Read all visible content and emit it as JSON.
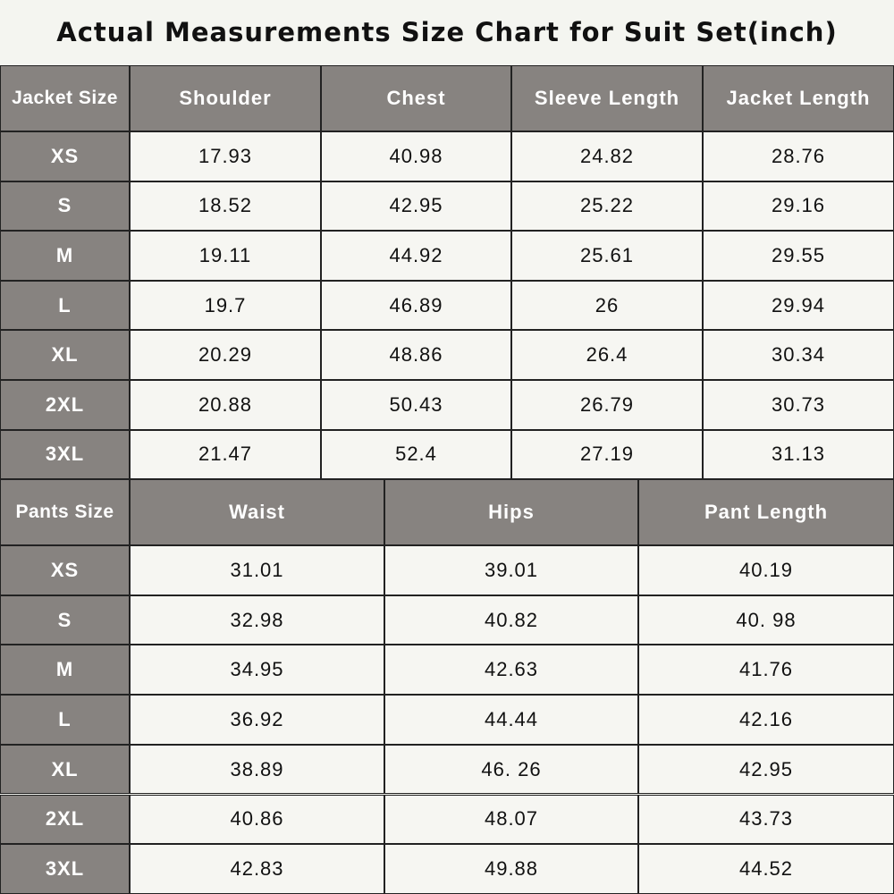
{
  "title": "Actual Measurements Size Chart for Suit Set(inch)",
  "jacket": {
    "header": [
      "Jacket Size",
      "Shoulder",
      "Chest",
      "Sleeve Length",
      "Jacket Length"
    ],
    "rows": [
      [
        "XS",
        "17.93",
        "40.98",
        "24.82",
        "28.76"
      ],
      [
        "S",
        "18.52",
        "42.95",
        "25.22",
        "29.16"
      ],
      [
        "M",
        "19.11",
        "44.92",
        "25.61",
        "29.55"
      ],
      [
        "L",
        "19.7",
        "46.89",
        "26",
        "29.94"
      ],
      [
        "XL",
        "20.29",
        "48.86",
        "26.4",
        "30.34"
      ],
      [
        "2XL",
        "20.88",
        "50.43",
        "26.79",
        "30.73"
      ],
      [
        "3XL",
        "21.47",
        "52.4",
        "27.19",
        "31.13"
      ]
    ]
  },
  "pants": {
    "header": [
      "Pants Size",
      "Waist",
      "Hips",
      "Pant Length"
    ],
    "rows": [
      [
        "XS",
        "31.01",
        "39.01",
        "40.19"
      ],
      [
        "S",
        "32.98",
        "40.82",
        "40. 98"
      ],
      [
        "M",
        "34.95",
        "42.63",
        "41.76"
      ],
      [
        "L",
        "36.92",
        "44.44",
        "42.16"
      ],
      [
        "XL",
        "38.89",
        "46. 26",
        "42.95"
      ],
      [
        "2XL",
        "40.86",
        "48.07",
        "43.73"
      ],
      [
        "3XL",
        "42.83",
        "49.88",
        "44.52"
      ]
    ]
  }
}
